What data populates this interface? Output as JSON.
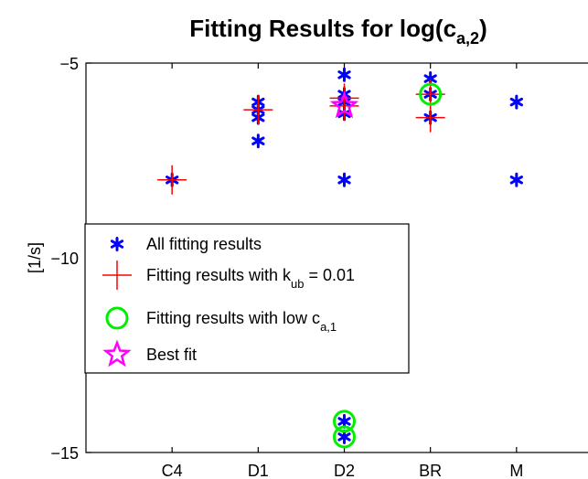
{
  "chart_data": {
    "type": "scatter",
    "title": {
      "main": "Fitting Results for log(c",
      "sub": "a,2",
      "close": ")"
    },
    "ylabel": "[1/s]",
    "categories": [
      "C4",
      "D1",
      "D2",
      "BR",
      "M"
    ],
    "xlim": [
      0,
      6
    ],
    "ylim": [
      -15,
      -5
    ],
    "yticks": [
      "-5",
      "-10",
      "-15"
    ],
    "grid": false,
    "legend_position": "left",
    "colors": {
      "all": "#0000ff",
      "kub": "#ff0000",
      "lowc": "#00ee00",
      "best": "#ff00ff"
    },
    "series": [
      {
        "key": "all",
        "marker": "asterisk",
        "points": [
          {
            "x": 1,
            "y": -8.0
          },
          {
            "x": 2,
            "y": -6.0
          },
          {
            "x": 2,
            "y": -6.2
          },
          {
            "x": 2,
            "y": -6.4
          },
          {
            "x": 2,
            "y": -7.0
          },
          {
            "x": 3,
            "y": -5.3
          },
          {
            "x": 3,
            "y": -5.8
          },
          {
            "x": 3,
            "y": -6.0
          },
          {
            "x": 3,
            "y": -6.3
          },
          {
            "x": 3,
            "y": -8.0
          },
          {
            "x": 3,
            "y": -14.2
          },
          {
            "x": 3,
            "y": -14.6
          },
          {
            "x": 4,
            "y": -5.4
          },
          {
            "x": 4,
            "y": -5.8
          },
          {
            "x": 4,
            "y": -6.4
          },
          {
            "x": 5,
            "y": -6.0
          },
          {
            "x": 5,
            "y": -8.0
          }
        ]
      },
      {
        "key": "kub",
        "marker": "plus",
        "points": [
          {
            "x": 1,
            "y": -8.0
          },
          {
            "x": 2,
            "y": -6.2
          },
          {
            "x": 3,
            "y": -5.9
          },
          {
            "x": 3,
            "y": -6.1
          },
          {
            "x": 4,
            "y": -5.8
          },
          {
            "x": 4,
            "y": -6.4
          }
        ]
      },
      {
        "key": "lowc",
        "marker": "circle",
        "points": [
          {
            "x": 3,
            "y": -14.2
          },
          {
            "x": 3,
            "y": -14.6
          },
          {
            "x": 4,
            "y": -5.8
          }
        ]
      },
      {
        "key": "best",
        "marker": "star",
        "points": [
          {
            "x": 3,
            "y": -6.1
          }
        ]
      }
    ],
    "legend": [
      {
        "key": "all",
        "marker": "asterisk",
        "label": "All fitting results",
        "sub": "",
        "after": ""
      },
      {
        "key": "kub",
        "marker": "plus",
        "label": "Fitting results with k",
        "sub": "ub",
        "after": " = 0.01"
      },
      {
        "key": "lowc",
        "marker": "circle",
        "label": "Fitting results with low c",
        "sub": "a,1",
        "after": ""
      },
      {
        "key": "best",
        "marker": "star",
        "label": "Best fit",
        "sub": "",
        "after": ""
      }
    ]
  }
}
